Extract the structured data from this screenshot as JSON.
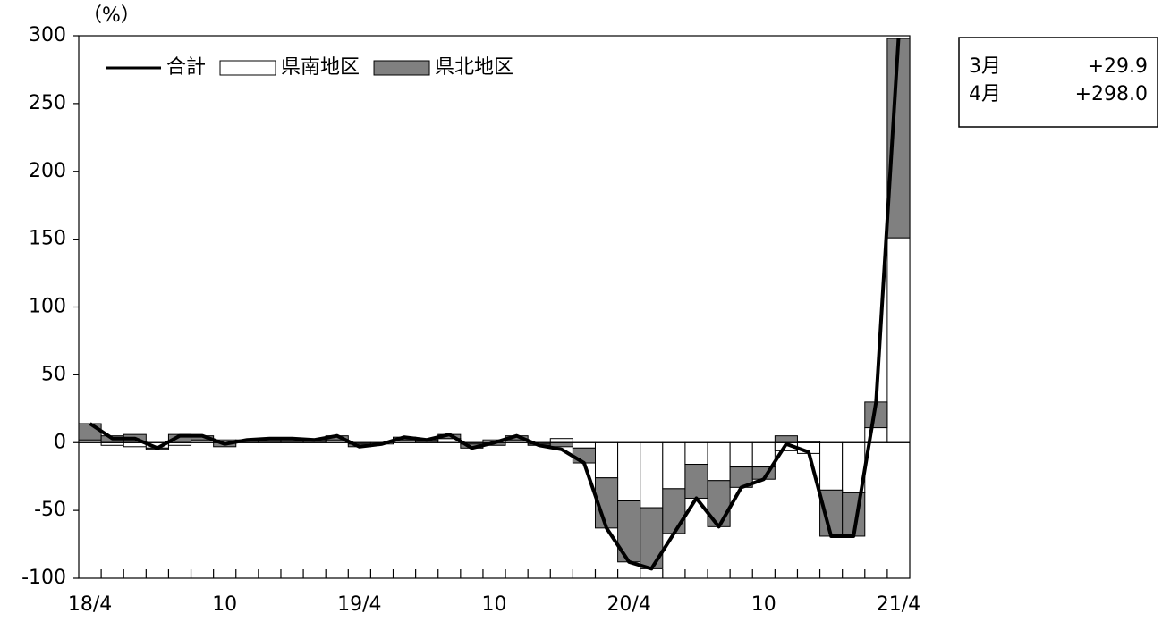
{
  "chart_data": {
    "type": "bar",
    "y_label": "（%）",
    "categories": [
      "18/4",
      null,
      null,
      null,
      null,
      null,
      "10",
      null,
      null,
      null,
      null,
      null,
      "19/4",
      null,
      null,
      null,
      null,
      null,
      "10",
      null,
      null,
      null,
      null,
      null,
      "20/4",
      null,
      null,
      null,
      null,
      null,
      "10",
      null,
      null,
      null,
      null,
      null,
      "21/4"
    ],
    "series": [
      {
        "name": "合計",
        "type": "line",
        "color": "#000000",
        "values": [
          14,
          3,
          3,
          -4,
          5,
          5,
          -1,
          2,
          3,
          3,
          2,
          5,
          -3,
          -1,
          4,
          2,
          6,
          -4,
          0,
          5,
          -2,
          -5,
          -15,
          -63,
          -88,
          -93,
          -67,
          -41,
          -62,
          -33,
          -27,
          -1,
          -7,
          -69,
          -69,
          29.9,
          298.0
        ]
      },
      {
        "name": "県南地区",
        "type": "bar",
        "color": "#ffffff",
        "values": [
          2,
          -2,
          -3,
          -4,
          -2,
          2,
          2,
          1,
          1,
          1,
          1,
          2,
          -1,
          -1,
          2,
          1,
          3,
          -1,
          2,
          2,
          -1,
          3,
          -4,
          -26,
          -43,
          -48,
          -34,
          -16,
          -28,
          -18,
          -18,
          -6,
          -8,
          -35,
          -37,
          11,
          151
        ]
      },
      {
        "name": "県北地区",
        "type": "bar",
        "color": "#808080",
        "values": [
          12,
          5,
          6,
          -1,
          6,
          3,
          -3,
          1,
          2,
          2,
          1,
          3,
          -2,
          0,
          2,
          1,
          3,
          -3,
          -2,
          3,
          -1,
          -3,
          -11,
          -37,
          -45,
          -45,
          -33,
          -25,
          -34,
          -15,
          -9,
          5,
          1,
          -34,
          -32,
          18.9,
          147
        ]
      }
    ],
    "ylim": [
      -100,
      300
    ],
    "yticks": [
      -100,
      -50,
      0,
      50,
      100,
      150,
      200,
      250,
      300
    ],
    "legend": "top-left"
  },
  "info_box": {
    "rows": [
      [
        "3月",
        "+29.9"
      ],
      [
        "4月",
        "+298.0"
      ]
    ]
  }
}
